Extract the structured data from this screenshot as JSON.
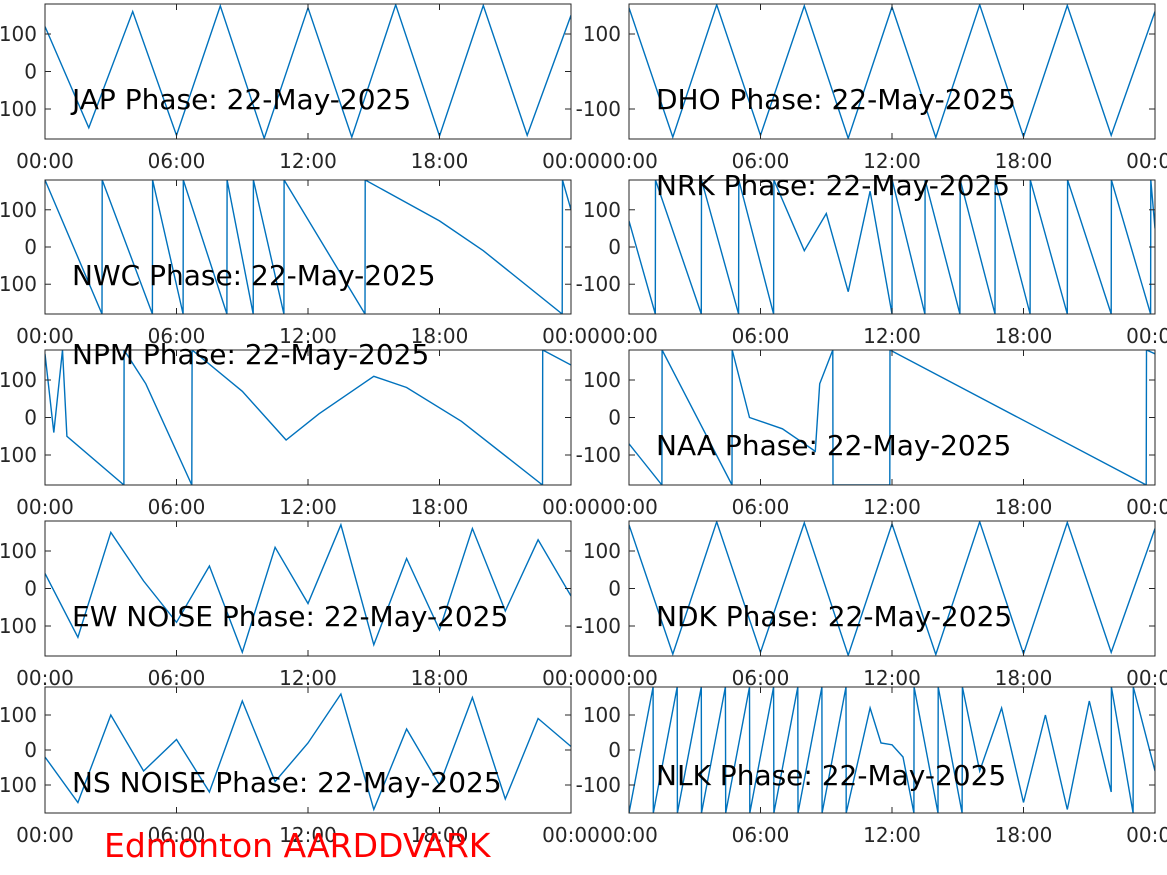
{
  "figure_label": "Edmonton AARDDVARK",
  "colors": {
    "trace": "#0072bd",
    "axes": "#262626",
    "label": "#000000",
    "footer": "#ff0000"
  },
  "chart_data": [
    {
      "type": "line",
      "title": "JAP Phase: 22-May-2025",
      "xlabel": "",
      "ylabel": "",
      "x_ticks": [
        "00:00",
        "06:00",
        "12:00",
        "18:00",
        "00:00"
      ],
      "y_ticks": [
        100,
        0,
        -100
      ],
      "ylim": [
        -180,
        180
      ],
      "xlim_hours": [
        0,
        24
      ],
      "series": [
        {
          "x_hours": [
            0,
            2,
            4,
            6,
            8,
            10,
            12,
            14,
            16,
            18,
            20,
            22,
            24
          ],
          "values": [
            120,
            -150,
            160,
            -170,
            175,
            -178,
            170,
            -175,
            178,
            -172,
            176,
            -170,
            150
          ]
        }
      ]
    },
    {
      "type": "line",
      "title": "DHO Phase: 22-May-2025",
      "xlabel": "",
      "ylabel": "",
      "x_ticks": [
        "00:00",
        "06:00",
        "12:00",
        "18:00",
        "00:00"
      ],
      "y_ticks": [
        100,
        -100
      ],
      "ylim": [
        -180,
        180
      ],
      "xlim_hours": [
        0,
        24
      ],
      "series": [
        {
          "x_hours": [
            0,
            2,
            4,
            6,
            8,
            10,
            12,
            14,
            16,
            18,
            20,
            22,
            24
          ],
          "values": [
            170,
            -175,
            178,
            -170,
            175,
            -178,
            172,
            -176,
            178,
            -174,
            176,
            -170,
            160
          ]
        }
      ]
    },
    {
      "type": "line",
      "title": "NWC Phase: 22-May-2025",
      "xlabel": "",
      "ylabel": "",
      "x_ticks": [
        "00:00",
        "06:00",
        "12:00",
        "18:00",
        "00:00"
      ],
      "y_ticks": [
        100,
        0,
        -100
      ],
      "ylim": [
        -180,
        180
      ],
      "xlim_hours": [
        0,
        24
      ],
      "series": [
        {
          "x_hours": [
            0,
            2.6,
            2.61,
            4.9,
            4.91,
            6.3,
            6.31,
            8.3,
            8.31,
            9.5,
            9.51,
            10.9,
            10.91,
            14.6,
            14.61,
            18,
            20,
            23.6,
            23.61,
            24
          ],
          "values": [
            180,
            -180,
            180,
            -180,
            180,
            -180,
            180,
            -180,
            180,
            -180,
            180,
            -180,
            180,
            -180,
            180,
            70,
            -10,
            -180,
            180,
            100
          ]
        }
      ]
    },
    {
      "type": "line",
      "title": "NRK Phase: 22-May-2025",
      "xlabel": "",
      "ylabel": "",
      "x_ticks": [
        "00:00",
        "06:00",
        "12:00",
        "18:00",
        "00:00"
      ],
      "y_ticks": [
        100,
        0,
        -100
      ],
      "ylim": [
        -180,
        180
      ],
      "xlim_hours": [
        0,
        24
      ],
      "series": [
        {
          "x_hours": [
            0,
            1.2,
            1.21,
            3.3,
            3.31,
            5,
            5.01,
            6.6,
            6.61,
            8,
            9,
            10,
            11,
            12,
            12.01,
            13.5,
            13.51,
            15.1,
            15.11,
            16.7,
            16.71,
            18.3,
            18.31,
            20,
            20.01,
            22,
            22.01,
            23.8,
            23.81,
            24
          ],
          "values": [
            70,
            -180,
            180,
            -180,
            180,
            -180,
            180,
            -180,
            180,
            -10,
            90,
            -120,
            150,
            -180,
            180,
            -180,
            180,
            -180,
            180,
            -180,
            180,
            -180,
            180,
            -180,
            180,
            -180,
            180,
            -180,
            180,
            50
          ]
        }
      ]
    },
    {
      "type": "line",
      "title": "NPM Phase: 22-May-2025",
      "xlabel": "",
      "ylabel": "",
      "x_ticks": [
        "00:00",
        "06:00",
        "12:00",
        "18:00",
        "00:00"
      ],
      "y_ticks": [
        100,
        0,
        -100
      ],
      "ylim": [
        -180,
        180
      ],
      "xlim_hours": [
        0,
        24
      ],
      "series": [
        {
          "x_hours": [
            0,
            0.4,
            0.8,
            1,
            3.6,
            3.61,
            4.6,
            6.7,
            6.71,
            9,
            11,
            12.5,
            14.5,
            15,
            16.5,
            19,
            22.7,
            22.71,
            24
          ],
          "values": [
            170,
            -40,
            180,
            -50,
            -180,
            180,
            90,
            -180,
            180,
            70,
            -60,
            10,
            90,
            110,
            80,
            -10,
            -180,
            180,
            140
          ]
        }
      ]
    },
    {
      "type": "line",
      "title": "NAA Phase: 22-May-2025",
      "xlabel": "",
      "ylabel": "",
      "x_ticks": [
        "00:00",
        "06:00",
        "12:00",
        "18:00",
        "00:00"
      ],
      "y_ticks": [
        100,
        0,
        -100
      ],
      "ylim": [
        -180,
        180
      ],
      "xlim_hours": [
        0,
        24
      ],
      "series": [
        {
          "x_hours": [
            0,
            1.5,
            1.51,
            4.7,
            4.71,
            5.5,
            7,
            8.5,
            8.7,
            9.3,
            9.31,
            11.9,
            11.91,
            23.6,
            23.61,
            24
          ],
          "values": [
            -70,
            -180,
            180,
            -180,
            180,
            0,
            -30,
            -90,
            90,
            180,
            -180,
            -180,
            180,
            -180,
            180,
            170
          ]
        }
      ]
    },
    {
      "type": "line",
      "title": "EW NOISE Phase: 22-May-2025",
      "xlabel": "",
      "ylabel": "",
      "x_ticks": [
        "00:00",
        "06:00",
        "12:00",
        "18:00",
        "00:00"
      ],
      "y_ticks": [
        100,
        0,
        -100
      ],
      "ylim": [
        -180,
        180
      ],
      "xlim_hours": [
        0,
        24
      ],
      "series": [
        {
          "x_hours": [
            0,
            1.5,
            3,
            4.5,
            6,
            7.5,
            9,
            10.5,
            12,
            13.5,
            15,
            16.5,
            18,
            19.5,
            21,
            22.5,
            24
          ],
          "values": [
            40,
            -130,
            150,
            20,
            -90,
            60,
            -170,
            110,
            -40,
            170,
            -150,
            80,
            -110,
            160,
            -60,
            130,
            -20
          ]
        }
      ]
    },
    {
      "type": "line",
      "title": "NDK Phase: 22-May-2025",
      "xlabel": "",
      "ylabel": "",
      "x_ticks": [
        "00:00",
        "06:00",
        "12:00",
        "18:00",
        "00:00"
      ],
      "y_ticks": [
        100,
        0,
        -100
      ],
      "ylim": [
        -180,
        180
      ],
      "xlim_hours": [
        0,
        24
      ],
      "series": [
        {
          "x_hours": [
            0,
            2,
            4,
            6,
            8,
            10,
            12,
            14,
            16,
            18,
            20,
            22,
            24
          ],
          "values": [
            170,
            -175,
            178,
            -170,
            175,
            -178,
            172,
            -176,
            178,
            -174,
            176,
            -170,
            160
          ]
        }
      ]
    },
    {
      "type": "line",
      "title": "NS NOISE Phase: 22-May-2025",
      "xlabel": "",
      "ylabel": "",
      "x_ticks": [
        "00:00",
        "06:00",
        "12:00",
        "18:00",
        "00:00"
      ],
      "y_ticks": [
        100,
        0,
        -100
      ],
      "ylim": [
        -180,
        180
      ],
      "xlim_hours": [
        0,
        24
      ],
      "series": [
        {
          "x_hours": [
            0,
            1.5,
            3,
            4.5,
            6,
            7.5,
            9,
            10.5,
            12,
            13.5,
            15,
            16.5,
            18,
            19.5,
            21,
            22.5,
            24
          ],
          "values": [
            -20,
            -150,
            100,
            -60,
            30,
            -120,
            140,
            -90,
            20,
            160,
            -170,
            60,
            -100,
            150,
            -140,
            90,
            10
          ]
        }
      ]
    },
    {
      "type": "line",
      "title": "NLK Phase: 22-May-2025",
      "xlabel": "",
      "ylabel": "",
      "x_ticks": [
        "00:00",
        "06:00",
        "12:00",
        "18:00",
        "00:00"
      ],
      "y_ticks": [
        100,
        0,
        -100
      ],
      "ylim": [
        -180,
        180
      ],
      "xlim_hours": [
        0,
        24
      ],
      "series": [
        {
          "x_hours": [
            0,
            1.1,
            1.11,
            2.2,
            2.21,
            3.3,
            3.31,
            4.4,
            4.41,
            5.5,
            5.51,
            6.6,
            6.61,
            7.7,
            7.71,
            8.8,
            8.81,
            9.9,
            9.91,
            11,
            11.5,
            12,
            12.5,
            13,
            13.01,
            14.1,
            14.11,
            15.2,
            15.21,
            16,
            17,
            18,
            19,
            20,
            21,
            22,
            22.01,
            23,
            23.01,
            24
          ],
          "values": [
            -180,
            180,
            -180,
            180,
            -180,
            180,
            -180,
            180,
            -180,
            180,
            -180,
            180,
            -180,
            180,
            -180,
            180,
            -180,
            180,
            -180,
            120,
            20,
            15,
            -20,
            -180,
            180,
            -180,
            180,
            -180,
            180,
            -60,
            120,
            -150,
            100,
            -170,
            140,
            -120,
            180,
            -180,
            180,
            -60
          ]
        }
      ]
    }
  ]
}
